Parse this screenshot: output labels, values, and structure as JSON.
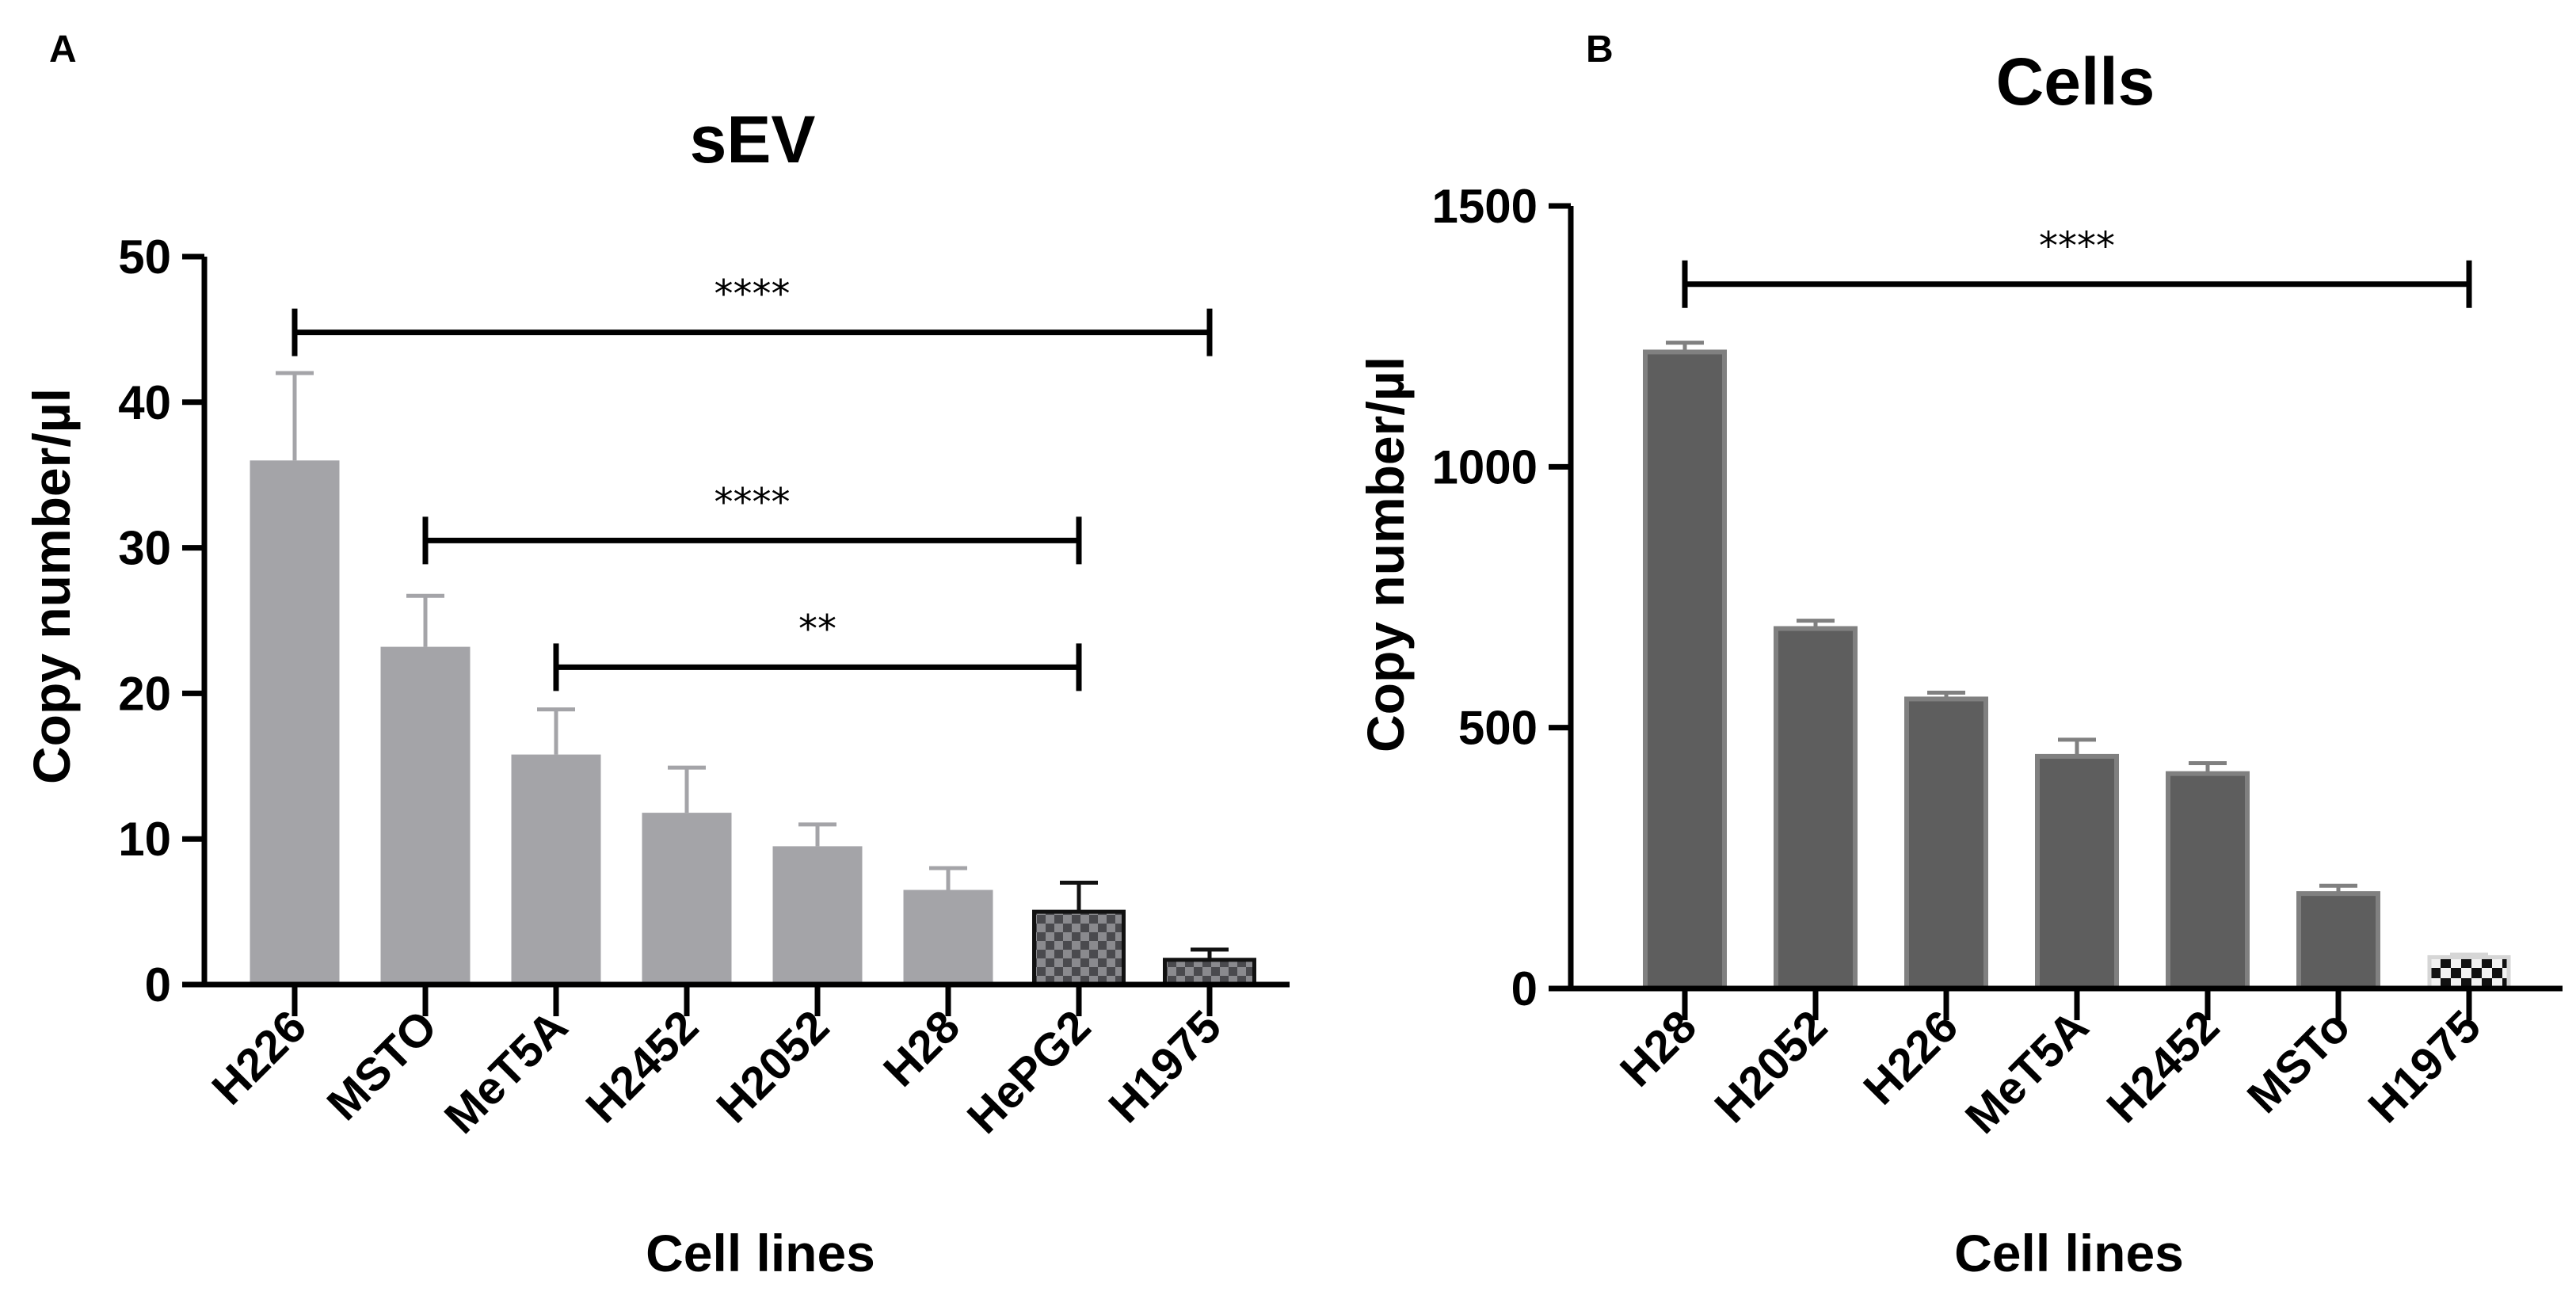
{
  "chart_data": [
    {
      "panel": "A",
      "type": "bar",
      "title": "sEV",
      "xlabel": "Cell lines",
      "ylabel": "Copy number/µl",
      "ylim": [
        0,
        50
      ],
      "yticks": [
        0,
        10,
        20,
        30,
        40,
        50
      ],
      "categories": [
        "H226",
        "MSTO",
        "MeT5A",
        "H2452",
        "H2052",
        "H28",
        "HePG2",
        "H1975"
      ],
      "values": [
        36,
        23.2,
        15.8,
        11.8,
        9.5,
        6.5,
        5.0,
        1.7
      ],
      "errors": [
        6,
        3.5,
        3.1,
        3.1,
        1.5,
        1.5,
        2.0,
        0.7
      ],
      "bar_styles": [
        "solid",
        "solid",
        "solid",
        "solid",
        "solid",
        "solid",
        "checker",
        "checker"
      ],
      "significance": [
        {
          "from": "H226",
          "to": "H1975",
          "label": "****",
          "y": 44.8
        },
        {
          "from": "MSTO",
          "to": "HePG2",
          "label": "****",
          "y": 30.5
        },
        {
          "from": "MeT5A",
          "to": "HePG2",
          "label": "**",
          "y": 21.8
        }
      ]
    },
    {
      "panel": "B",
      "type": "bar",
      "title": "Cells",
      "xlabel": "Cell lines",
      "ylabel": "Copy number/µl",
      "ylim": [
        0,
        1500
      ],
      "yticks": [
        0,
        500,
        1000,
        1500
      ],
      "categories": [
        "H28",
        "H2052",
        "H226",
        "MeT5A",
        "H2452",
        "MSTo",
        "H1975"
      ],
      "values": [
        1220,
        690,
        555,
        445,
        412,
        182,
        60
      ],
      "errors": [
        18,
        15,
        12,
        32,
        20,
        15,
        5
      ],
      "bar_styles": [
        "solid",
        "solid",
        "solid",
        "solid",
        "solid",
        "solid",
        "checker"
      ],
      "significance": [
        {
          "from": "H28",
          "to": "H1975",
          "label": "****",
          "y": 1350
        }
      ]
    }
  ],
  "colors": {
    "panel_a_bar": "#a4a4a8",
    "panel_b_bar": "#5e5e5e",
    "panel_b_bar_edge": "#808080",
    "axis": "#000000"
  }
}
